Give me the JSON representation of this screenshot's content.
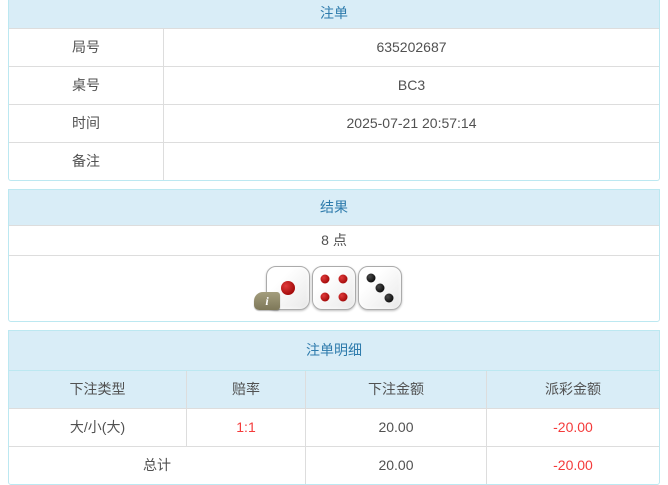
{
  "colors": {
    "header_bg": "#d9edf7",
    "header_text": "#2e7bac",
    "panel_border": "#bce8f1",
    "cell_border": "#dddddd",
    "body_text": "#515151",
    "negative_text": "#f43b3b"
  },
  "bet_slip": {
    "title": "注单",
    "rows": [
      {
        "label": "局号",
        "value": "635202687"
      },
      {
        "label": "桌号",
        "value": "BC3"
      },
      {
        "label": "时间",
        "value": "2025-07-21 20:57:14"
      },
      {
        "label": "备注",
        "value": ""
      }
    ]
  },
  "result": {
    "title": "结果",
    "points": "8 点",
    "dice": [
      {
        "value": 1,
        "color": "red",
        "has_info_badge": true
      },
      {
        "value": 4,
        "color": "red",
        "has_info_badge": false
      },
      {
        "value": 3,
        "color": "black",
        "has_info_badge": false
      }
    ],
    "info_badge": "i"
  },
  "bet_details": {
    "title": "注单明细",
    "columns": [
      "下注类型",
      "赔率",
      "下注金额",
      "派彩金额"
    ],
    "rows": [
      {
        "bet_type": "大/小(大)",
        "odds": "1:1",
        "bet_amount": "20.00",
        "payout": "-20.00"
      }
    ],
    "total": {
      "label": "总计",
      "bet_amount": "20.00",
      "payout": "-20.00"
    }
  }
}
